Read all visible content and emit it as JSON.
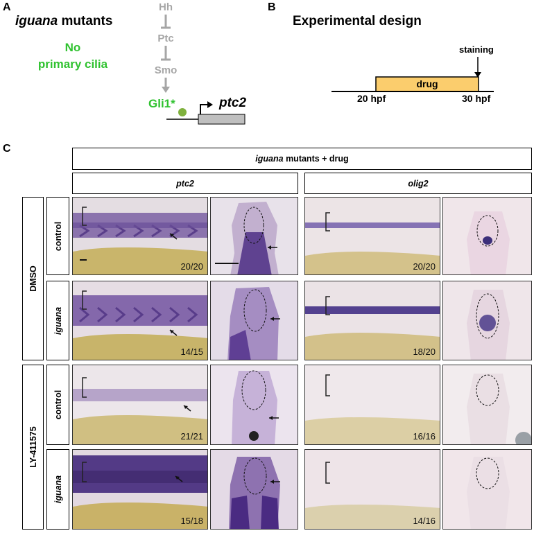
{
  "panel_a": {
    "label": "A",
    "title_italic": "iguana",
    "title_rest": " mutants",
    "cilia_line1": "No",
    "cilia_line2": "primary cilia",
    "pathway": [
      "Hh",
      "Ptc",
      "Smo",
      "Gli1*"
    ],
    "gene": "ptc2"
  },
  "panel_b": {
    "label": "B",
    "title": "Experimental design",
    "staining": "staining",
    "drug": "drug",
    "start": "20 hpf",
    "end": "30 hpf",
    "drug_color": "#fbcd6d"
  },
  "panel_c": {
    "label": "C",
    "header_italic": "iguana",
    "header_rest": " mutants + drug",
    "gene_cols": [
      "ptc2",
      "olig2"
    ],
    "treatments": [
      "DMSO",
      "LY-411575"
    ],
    "conditions": [
      "control",
      "iguana",
      "control",
      "iguana"
    ],
    "ptc2_counts": [
      "20/20",
      "14/15",
      "21/21",
      "15/18"
    ],
    "olig2_counts": [
      "20/20",
      "18/20",
      "16/16",
      "14/16"
    ]
  }
}
